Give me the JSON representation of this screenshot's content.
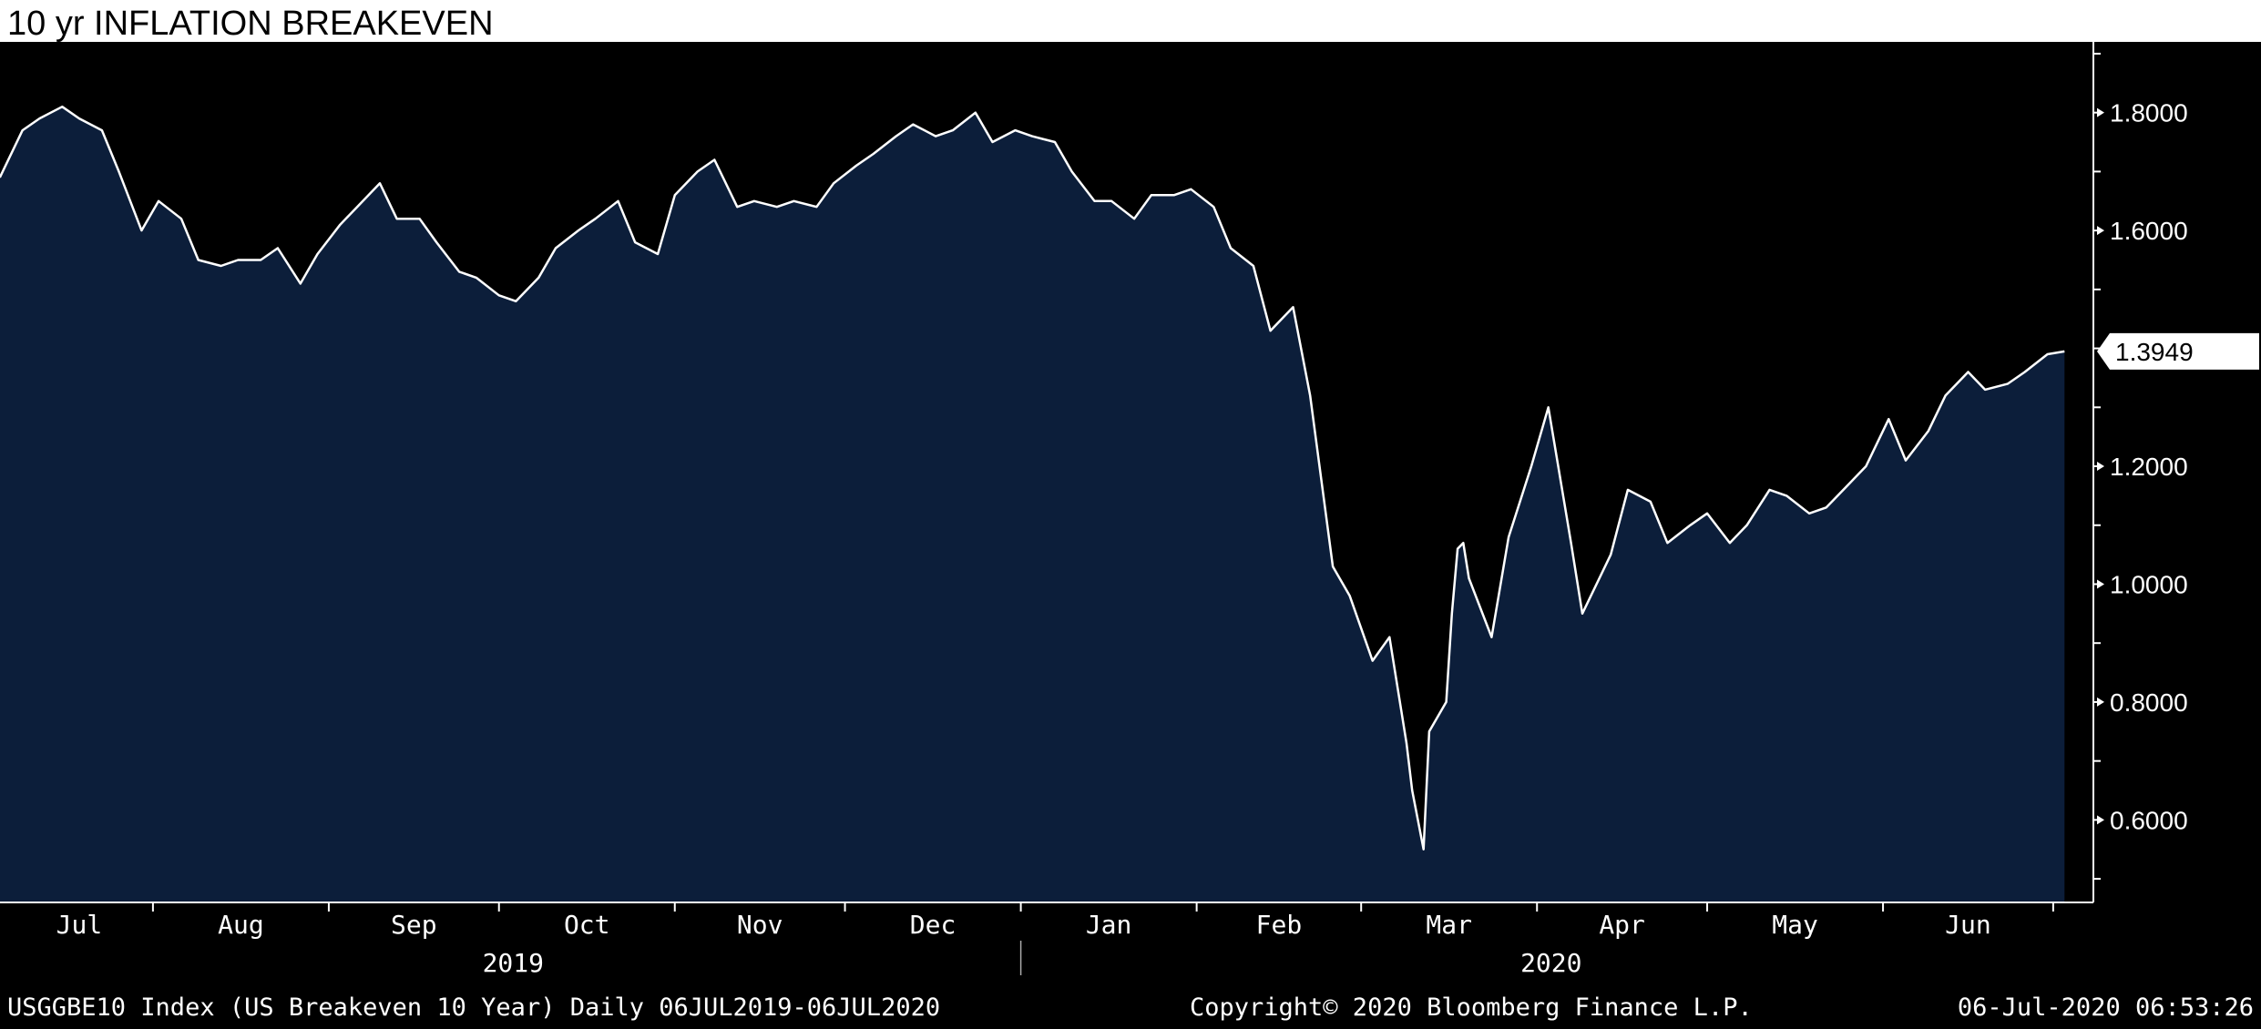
{
  "chart_data": {
    "type": "area",
    "title": "10 yr INFLATION BREAKEVEN",
    "series": [
      {
        "name": "USGGBE10 Index (US Breakeven 10 Year)",
        "x": [
          "2019-07-05",
          "2019-07-09",
          "2019-07-12",
          "2019-07-16",
          "2019-07-19",
          "2019-07-23",
          "2019-07-26",
          "2019-07-30",
          "2019-08-02",
          "2019-08-06",
          "2019-08-09",
          "2019-08-13",
          "2019-08-16",
          "2019-08-20",
          "2019-08-23",
          "2019-08-27",
          "2019-08-30",
          "2019-09-03",
          "2019-09-06",
          "2019-09-10",
          "2019-09-13",
          "2019-09-17",
          "2019-09-20",
          "2019-09-24",
          "2019-09-27",
          "2019-10-01",
          "2019-10-04",
          "2019-10-08",
          "2019-10-11",
          "2019-10-15",
          "2019-10-18",
          "2019-10-22",
          "2019-10-25",
          "2019-10-29",
          "2019-11-01",
          "2019-11-05",
          "2019-11-08",
          "2019-11-12",
          "2019-11-15",
          "2019-11-19",
          "2019-11-22",
          "2019-11-26",
          "2019-11-29",
          "2019-12-03",
          "2019-12-06",
          "2019-12-10",
          "2019-12-13",
          "2019-12-17",
          "2019-12-20",
          "2019-12-24",
          "2019-12-27",
          "2019-12-31",
          "2020-01-03",
          "2020-01-07",
          "2020-01-10",
          "2020-01-14",
          "2020-01-17",
          "2020-01-21",
          "2020-01-24",
          "2020-01-28",
          "2020-01-31",
          "2020-02-04",
          "2020-02-07",
          "2020-02-11",
          "2020-02-14",
          "2020-02-18",
          "2020-02-21",
          "2020-02-25",
          "2020-02-28",
          "2020-03-03",
          "2020-03-06",
          "2020-03-09",
          "2020-03-10",
          "2020-03-12",
          "2020-03-13",
          "2020-03-16",
          "2020-03-17",
          "2020-03-18",
          "2020-03-19",
          "2020-03-20",
          "2020-03-24",
          "2020-03-27",
          "2020-03-31",
          "2020-04-03",
          "2020-04-07",
          "2020-04-09",
          "2020-04-14",
          "2020-04-17",
          "2020-04-21",
          "2020-04-24",
          "2020-04-28",
          "2020-05-01",
          "2020-05-05",
          "2020-05-08",
          "2020-05-12",
          "2020-05-15",
          "2020-05-19",
          "2020-05-22",
          "2020-05-27",
          "2020-05-29",
          "2020-06-02",
          "2020-06-05",
          "2020-06-09",
          "2020-06-12",
          "2020-06-16",
          "2020-06-19",
          "2020-06-23",
          "2020-06-26",
          "2020-06-30",
          "2020-07-03"
        ],
        "values": [
          1.69,
          1.77,
          1.79,
          1.81,
          1.79,
          1.77,
          1.7,
          1.6,
          1.65,
          1.62,
          1.55,
          1.54,
          1.55,
          1.55,
          1.57,
          1.51,
          1.56,
          1.61,
          1.64,
          1.68,
          1.62,
          1.62,
          1.58,
          1.53,
          1.52,
          1.49,
          1.48,
          1.52,
          1.57,
          1.6,
          1.62,
          1.65,
          1.58,
          1.56,
          1.66,
          1.7,
          1.72,
          1.64,
          1.65,
          1.64,
          1.65,
          1.64,
          1.68,
          1.71,
          1.73,
          1.76,
          1.78,
          1.76,
          1.77,
          1.8,
          1.75,
          1.77,
          1.76,
          1.75,
          1.7,
          1.65,
          1.65,
          1.62,
          1.66,
          1.66,
          1.67,
          1.64,
          1.57,
          1.54,
          1.43,
          1.47,
          1.32,
          1.03,
          0.98,
          0.87,
          0.91,
          0.73,
          0.65,
          0.55,
          0.75,
          0.8,
          0.95,
          1.06,
          1.07,
          1.01,
          0.91,
          1.08,
          1.2,
          1.3,
          1.07,
          0.95,
          1.05,
          1.16,
          1.14,
          1.07,
          1.1,
          1.12,
          1.07,
          1.1,
          1.16,
          1.15,
          1.12,
          1.13,
          1.18,
          1.2,
          1.28,
          1.21,
          1.26,
          1.32,
          1.36,
          1.33,
          1.34,
          1.36,
          1.39,
          1.3949
        ]
      }
    ],
    "ylim": [
      0.46,
      1.92
    ],
    "yticks": [
      "1.8000",
      "1.6000",
      "1.2000",
      "1.0000",
      "0.8000",
      "0.6000"
    ],
    "last_value_label": "1.3949",
    "x_month_labels": [
      "Jul",
      "Aug",
      "Sep",
      "Oct",
      "Nov",
      "Dec",
      "Jan",
      "Feb",
      "Mar",
      "Apr",
      "May",
      "Jun"
    ],
    "x_year_labels": [
      "2019",
      "2020"
    ],
    "grid": false,
    "colors": {
      "background": "#000000",
      "area_fill": "#0c1e3a",
      "line": "#ffffff",
      "text": "#ffffff"
    }
  },
  "footer": {
    "ticker_info": "USGGBE10 Index (US Breakeven 10 Year)  Daily 06JUL2019-06JUL2020",
    "copyright": "Copyright© 2020 Bloomberg Finance L.P.",
    "timestamp": "06-Jul-2020 06:53:26"
  }
}
